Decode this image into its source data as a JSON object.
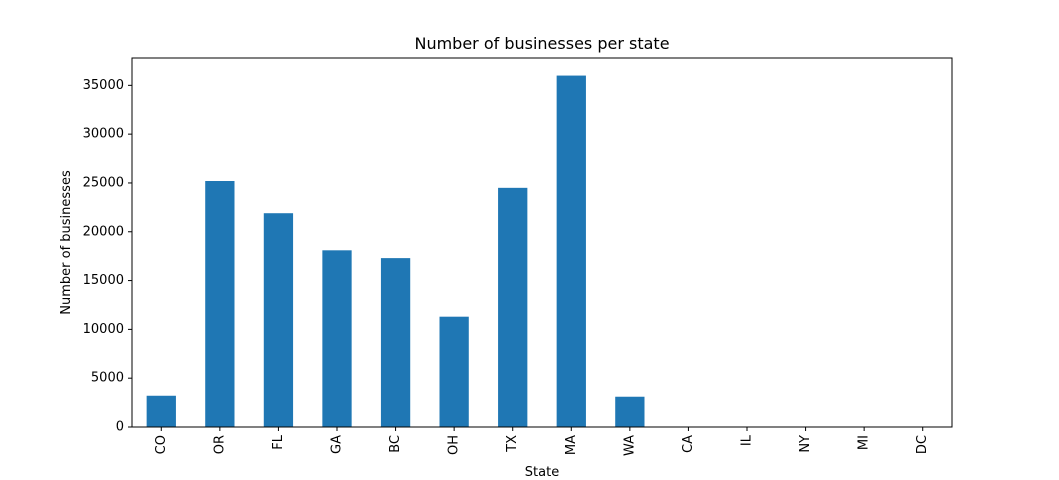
{
  "chart_data": {
    "type": "bar",
    "title": "Number of businesses per state",
    "xlabel": "State",
    "ylabel": "Number of businesses",
    "categories": [
      "CO",
      "OR",
      "FL",
      "GA",
      "BC",
      "OH",
      "TX",
      "MA",
      "WA",
      "CA",
      "IL",
      "NY",
      "MI",
      "DC"
    ],
    "values": [
      3200,
      25200,
      21900,
      18100,
      17300,
      11300,
      24500,
      36000,
      3100,
      5,
      3,
      2,
      1,
      1
    ],
    "ylim": [
      0,
      37800
    ],
    "yticks": [
      0,
      5000,
      10000,
      15000,
      20000,
      25000,
      30000,
      35000
    ],
    "bar_color": "#1f77b4",
    "grid": false,
    "legend": "none"
  }
}
